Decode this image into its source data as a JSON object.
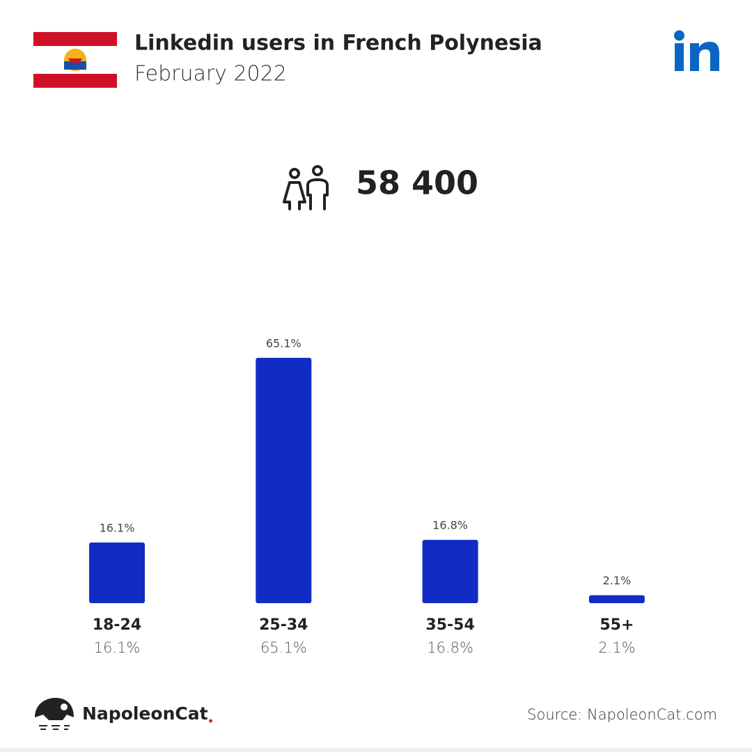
{
  "chart_data": {
    "type": "bar",
    "title": "Linkedin users in French Polynesia",
    "subtitle": "February 2022",
    "total": "58 400",
    "categories": [
      "18-24",
      "25-34",
      "35-54",
      "55+"
    ],
    "values": [
      16.1,
      65.1,
      16.8,
      2.1
    ],
    "value_labels": [
      "16.1%",
      "65.1%",
      "16.8%",
      "2.1%"
    ],
    "color": "#102cc4",
    "brand": "NapoleonCat",
    "source": "Source: NapoleonCat.com"
  }
}
